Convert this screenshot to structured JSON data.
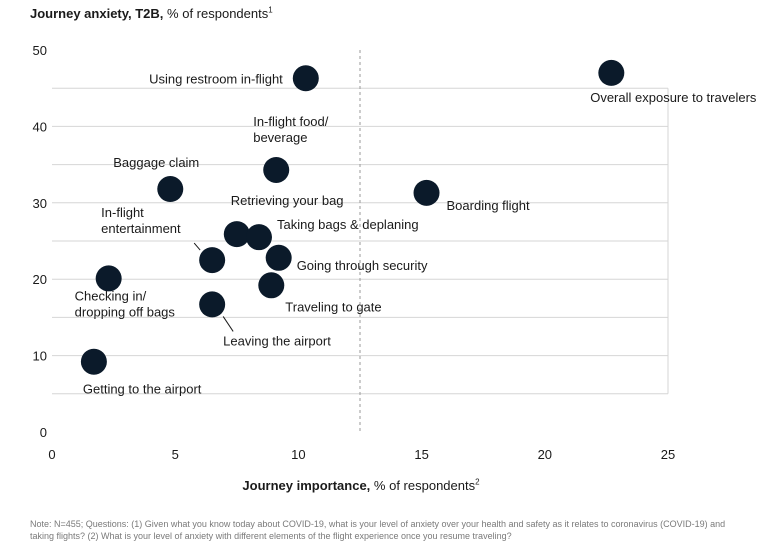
{
  "chart_data": {
    "type": "scatter",
    "ylabel_bold": "Journey anxiety, T2B,",
    "ylabel_rest": "% of respondents",
    "ylabel_sup": "1",
    "xlabel_bold": "Journey importance,",
    "xlabel_rest": "% of respondents",
    "xlabel_sup": "2",
    "xlim": [
      0,
      25
    ],
    "ylim": [
      0,
      50
    ],
    "xticks": [
      0,
      5,
      10,
      15,
      20,
      25
    ],
    "yticks": [
      0,
      10,
      20,
      30,
      40,
      50
    ],
    "reference_line_x": 12.5,
    "point_color": "#0b1a2a",
    "points": [
      {
        "label": "Overall exposure to travelers",
        "x": 22.7,
        "y": 47.0
      },
      {
        "label": "Using restroom in-flight",
        "x": 10.3,
        "y": 46.3
      },
      {
        "label": "In-flight food/\nbeverage",
        "x": 9.1,
        "y": 34.3
      },
      {
        "label": "Baggage claim",
        "x": 4.8,
        "y": 31.8
      },
      {
        "label": "Boarding flight",
        "x": 15.2,
        "y": 31.3
      },
      {
        "label": "Retrieving your bag",
        "x": 7.5,
        "y": 25.9
      },
      {
        "label": "Taking bags & deplaning",
        "x": 8.4,
        "y": 25.5
      },
      {
        "label": "In-flight\nentertainment",
        "x": 6.5,
        "y": 22.5
      },
      {
        "label": "Going through security",
        "x": 9.2,
        "y": 22.8
      },
      {
        "label": "Checking in/\ndropping off bags",
        "x": 2.3,
        "y": 20.1
      },
      {
        "label": "Traveling to gate",
        "x": 8.9,
        "y": 19.2
      },
      {
        "label": "Leaving the airport",
        "x": 6.5,
        "y": 16.7
      },
      {
        "label": "Getting to the airport",
        "x": 1.7,
        "y": 9.2
      }
    ]
  },
  "note": "Note: N=455; Questions: (1) Given what you know today about COVID-19, what is your level of anxiety over your health and safety as it relates to coronavirus (COVID-19) and taking flights? (2) What is your level of anxiety with different elements of the flight experience once you resume traveling?"
}
